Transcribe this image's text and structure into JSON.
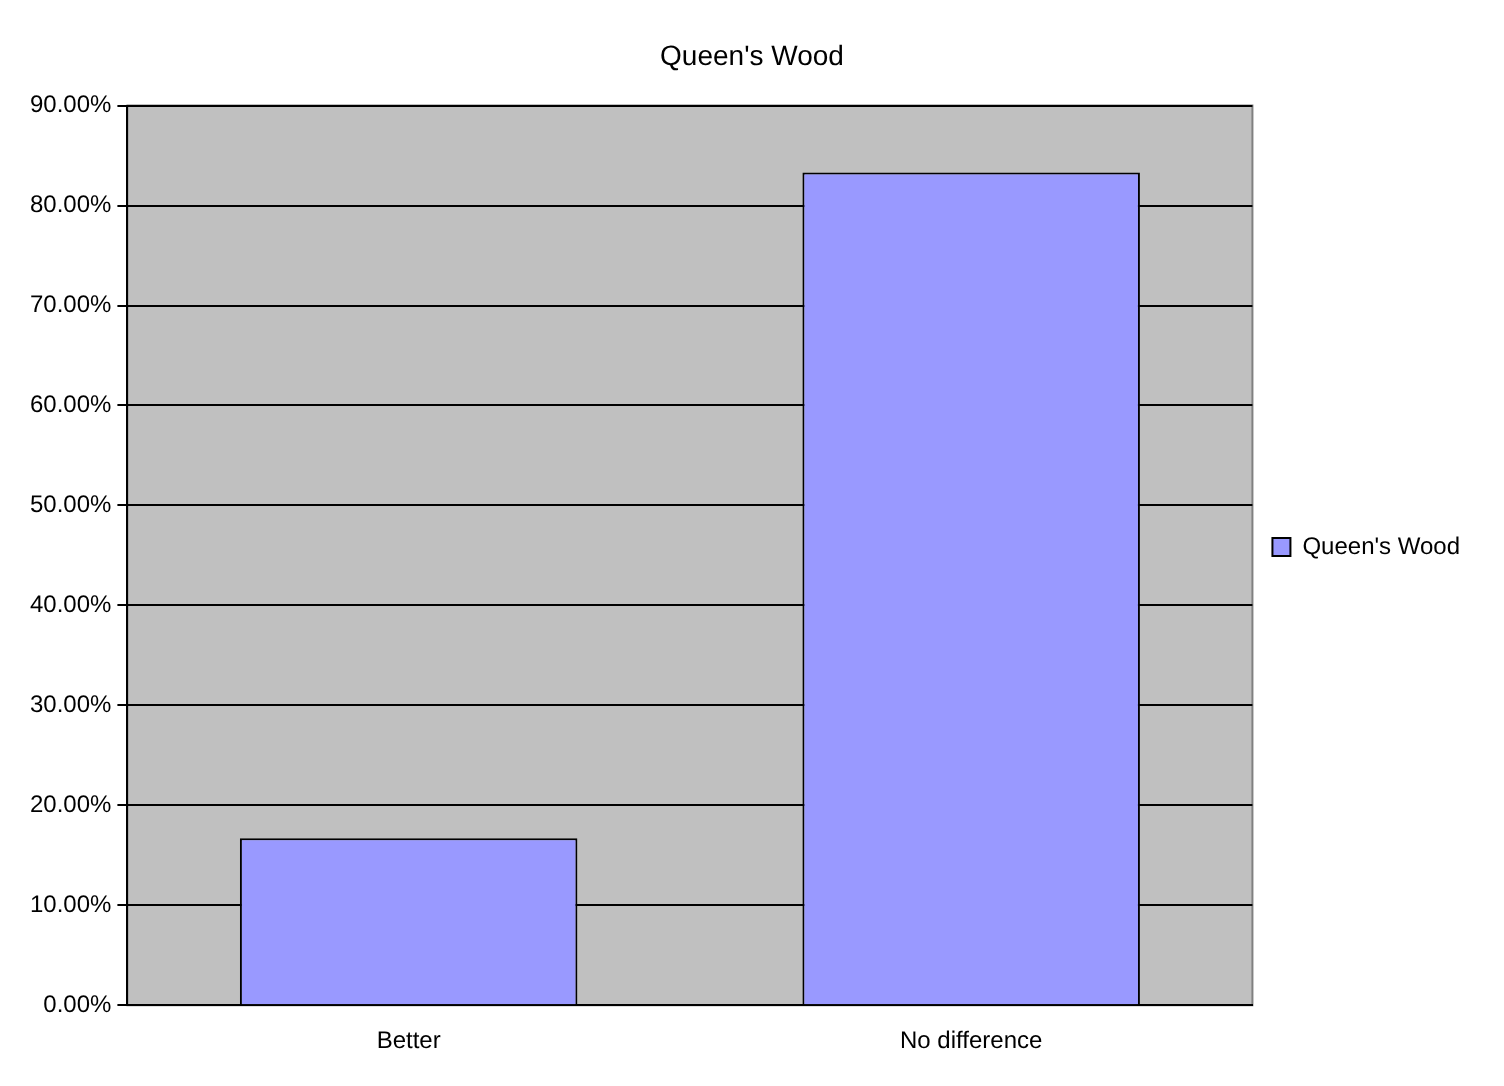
{
  "chart_data": {
    "type": "bar",
    "title": "Queen's Wood",
    "categories": [
      "Better",
      "No difference"
    ],
    "series": [
      {
        "name": "Queen's Wood",
        "color": "#9999ff",
        "values": [
          16.7,
          83.3
        ]
      }
    ],
    "ylim": [
      0,
      90
    ],
    "yticks": [
      {
        "value": 0,
        "label": "0.00%"
      },
      {
        "value": 10,
        "label": "10.00%"
      },
      {
        "value": 20,
        "label": "20.00%"
      },
      {
        "value": 30,
        "label": "30.00%"
      },
      {
        "value": 40,
        "label": "40.00%"
      },
      {
        "value": 50,
        "label": "50.00%"
      },
      {
        "value": 60,
        "label": "60.00%"
      },
      {
        "value": 70,
        "label": "70.00%"
      },
      {
        "value": 80,
        "label": "80.00%"
      },
      {
        "value": 90,
        "label": "90.00%"
      }
    ],
    "grid": "y",
    "legend": "right"
  }
}
